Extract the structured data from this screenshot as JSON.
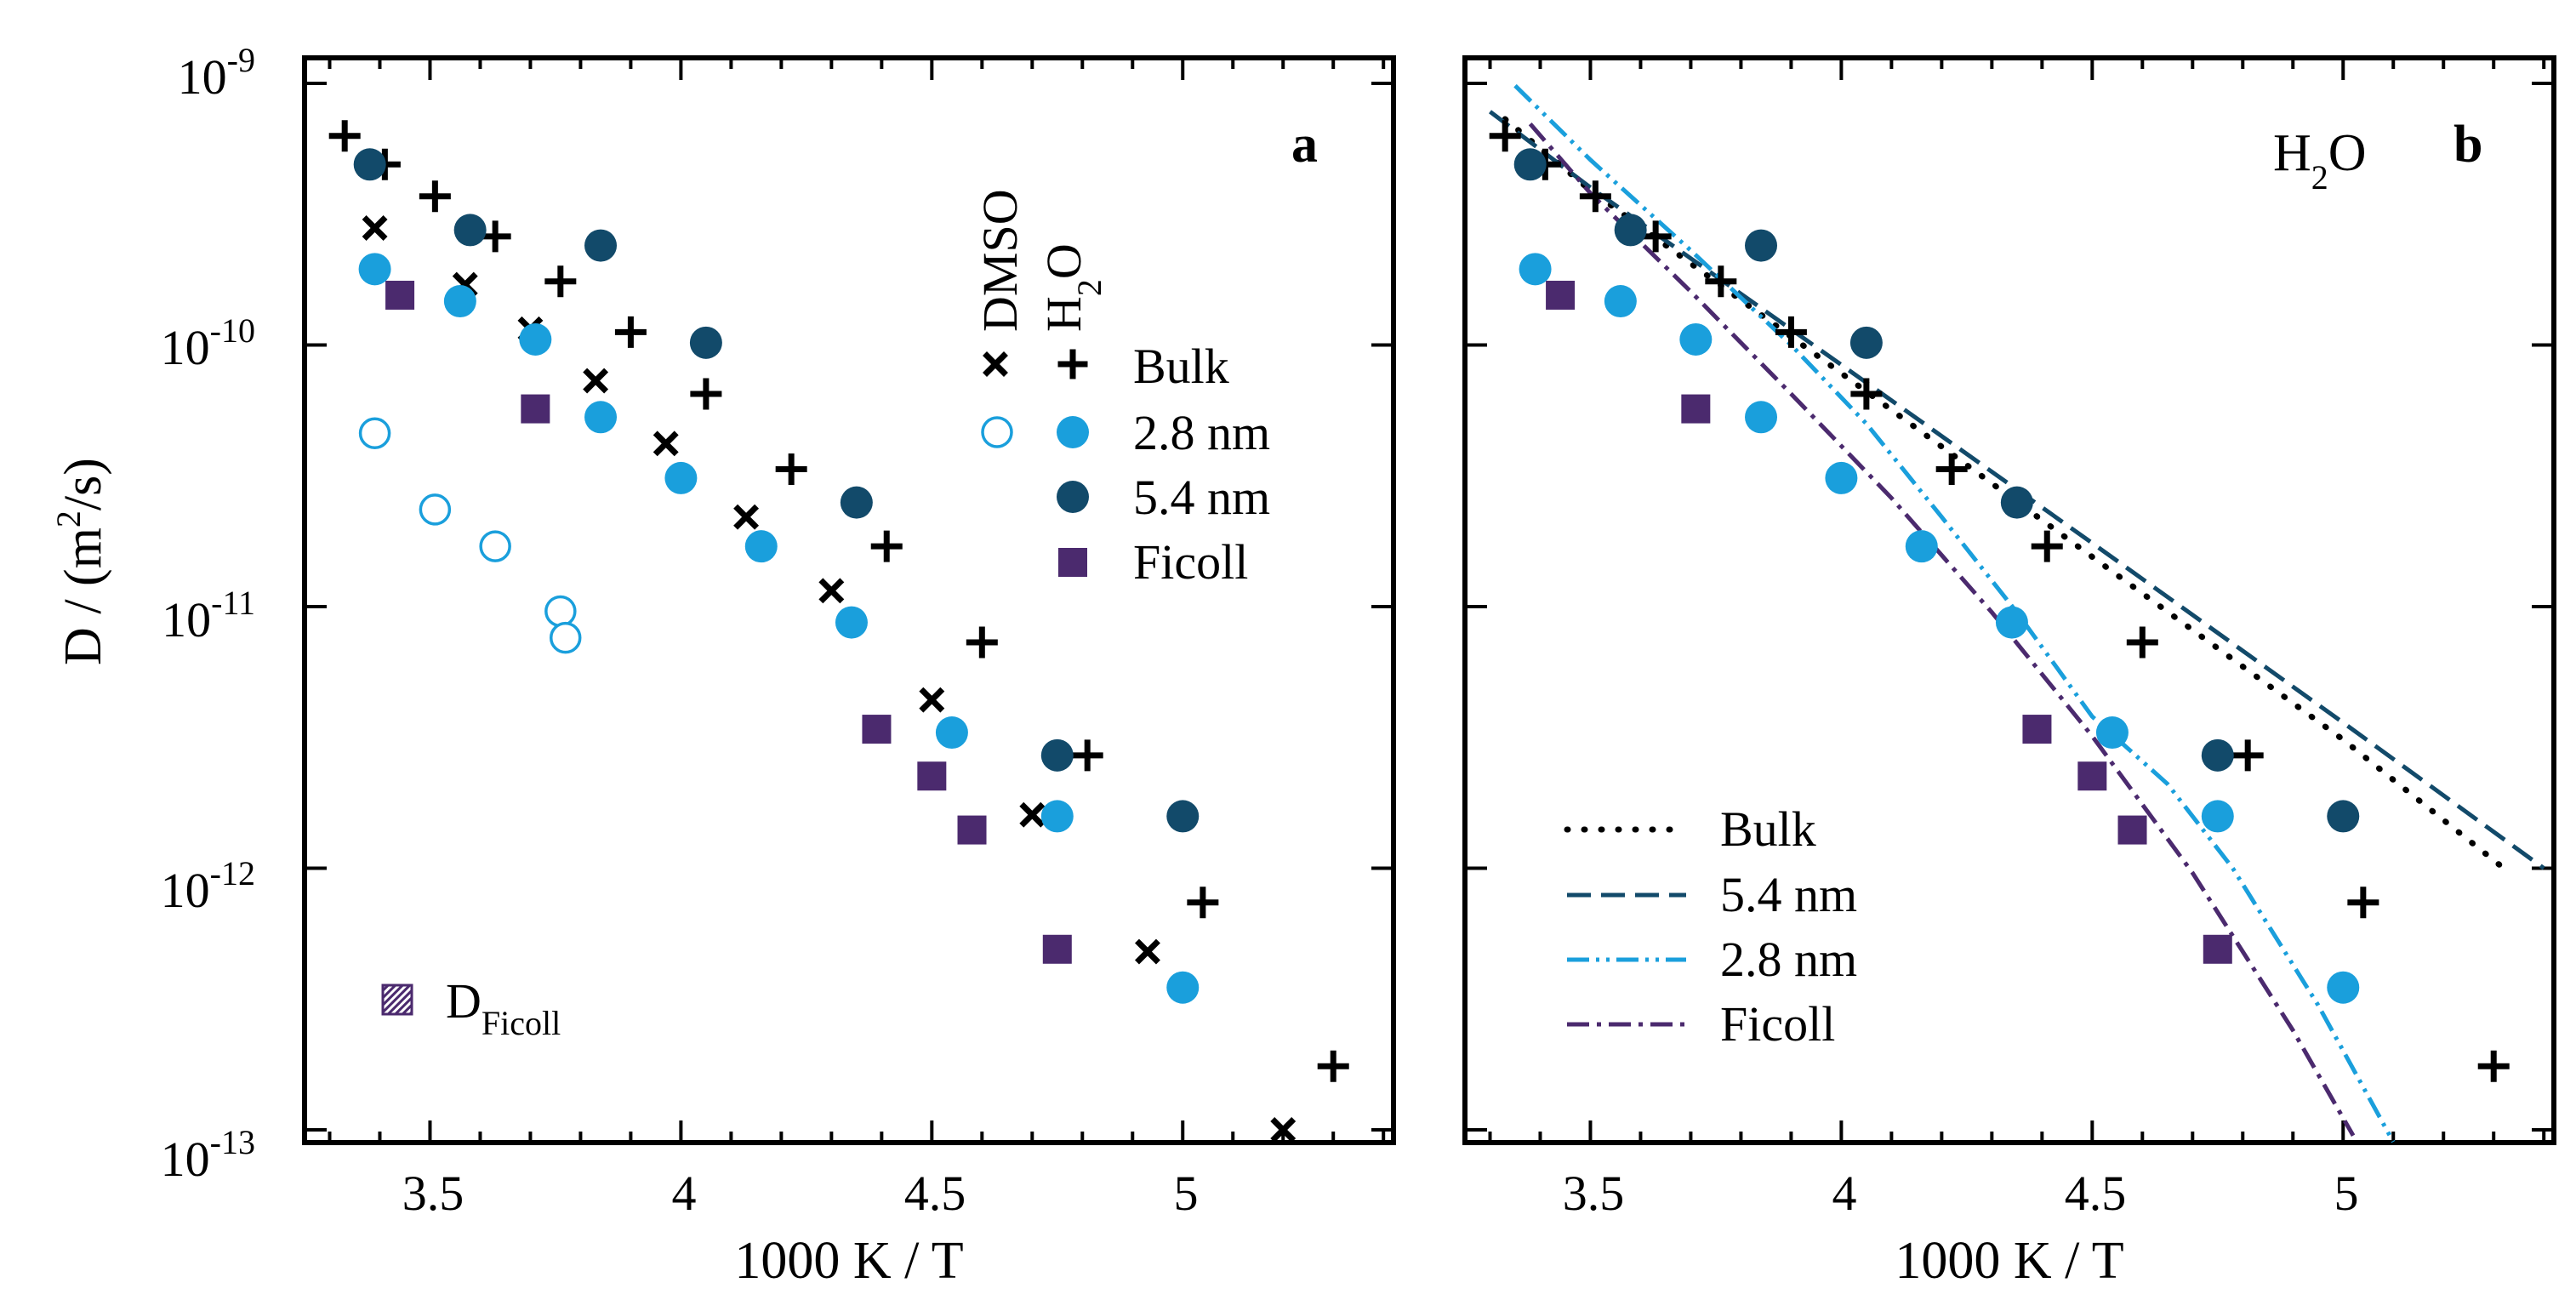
{
  "figure": {
    "y_axis_label": "D / (m",
    "y_axis_label_sup": "2",
    "y_axis_label_end": "/s)"
  },
  "chart_data": [
    {
      "type": "scatter",
      "panel": "a",
      "xlabel": "1000 K / T",
      "ylabel": "D / (m^2/s)",
      "yscale": "log",
      "xlim": [
        3.25,
        5.42
      ],
      "ylim": [
        1e-13,
        1e-09
      ],
      "x_ticks": [
        3.5,
        4,
        4.5,
        5
      ],
      "x_tick_labels": [
        "3.5",
        "4",
        "4.5",
        "5"
      ],
      "y_tick_labels": [
        {
          "base": "10",
          "exp": "-9"
        },
        {
          "base": "10",
          "exp": "-10"
        },
        {
          "base": "10",
          "exp": "-11"
        },
        {
          "base": "10",
          "exp": "-12"
        },
        {
          "base": "10",
          "exp": "-13"
        }
      ],
      "legend": {
        "col_headers": [
          "DMSO",
          "H",
          "2",
          "O"
        ],
        "rows": [
          "Bulk",
          "2.8 nm",
          "5.4 nm",
          "Ficoll"
        ]
      },
      "annotation": {
        "text": "D",
        "subscript": "Ficoll"
      },
      "series": [
        {
          "name": "DMSO Bulk",
          "marker": "x",
          "color": "#000000",
          "x": [
            3.39,
            3.57,
            3.7,
            3.83,
            3.97,
            4.13,
            4.3,
            4.5,
            4.7,
            4.93,
            5.2
          ],
          "y": [
            2.8e-10,
            1.7e-10,
            1.15e-10,
            7.3e-11,
            4.2e-11,
            2.2e-11,
            1.15e-11,
            4.4e-12,
            1.6e-12,
            4.8e-13,
            1e-13
          ]
        },
        {
          "name": "DMSO 2.8 nm",
          "marker": "open-circle",
          "color": "#1a9fdc",
          "x": [
            3.39,
            3.51,
            3.63,
            3.76,
            3.77
          ],
          "y": [
            4.6e-11,
            2.35e-11,
            1.7e-11,
            9.6e-12,
            7.6e-12
          ]
        },
        {
          "name": "H2O Bulk",
          "marker": "+",
          "color": "#000000",
          "x": [
            3.33,
            3.41,
            3.51,
            3.63,
            3.76,
            3.9,
            4.05,
            4.22,
            4.41,
            4.6,
            4.81,
            5.04,
            5.3
          ],
          "y": [
            6.3e-10,
            4.9e-10,
            3.7e-10,
            2.6e-10,
            1.75e-10,
            1.12e-10,
            6.5e-11,
            3.35e-11,
            1.7e-11,
            7.3e-12,
            2.7e-12,
            7.4e-13,
            1.75e-13
          ]
        },
        {
          "name": "H2O 2.8 nm",
          "marker": "filled-circle",
          "color": "#1a9fdc",
          "x": [
            3.39,
            3.56,
            3.71,
            3.84,
            4.0,
            4.16,
            4.34,
            4.54,
            4.75,
            5.0
          ],
          "y": [
            1.95e-10,
            1.47e-10,
            1.05e-10,
            5.3e-11,
            3.1e-11,
            1.7e-11,
            8.7e-12,
            3.3e-12,
            1.58e-12,
            3.5e-13
          ]
        },
        {
          "name": "H2O 5.4 nm",
          "marker": "filled-circle",
          "color": "#124a6a",
          "x": [
            3.38,
            3.58,
            3.84,
            4.05,
            4.35,
            4.75,
            5.0
          ],
          "y": [
            4.9e-10,
            2.75e-10,
            2.4e-10,
            1.02e-10,
            2.5e-11,
            2.7e-12,
            1.58e-12
          ]
        },
        {
          "name": "H2O Ficoll",
          "marker": "square",
          "color": "#4b2a6e",
          "x": [
            3.44,
            3.71,
            4.39,
            4.5,
            4.58,
            4.75
          ],
          "y": [
            1.55e-10,
            5.7e-11,
            3.4e-12,
            2.25e-12,
            1.4e-12,
            4.9e-13
          ]
        }
      ]
    },
    {
      "type": "scatter",
      "panel": "b",
      "title": "H2O",
      "title_parts": [
        "H",
        "2",
        "O"
      ],
      "xlabel": "1000 K / T",
      "yscale": "log",
      "xlim": [
        3.25,
        5.42
      ],
      "ylim": [
        1e-13,
        1e-09
      ],
      "x_ticks": [
        3.5,
        4,
        4.5,
        5
      ],
      "x_tick_labels": [
        "3.5",
        "4",
        "4.5",
        "5"
      ],
      "legend": {
        "rows": [
          "Bulk",
          "5.4 nm",
          "2.8 nm",
          "Ficoll"
        ]
      },
      "series": [
        {
          "name": "H2O Bulk",
          "marker": "+",
          "color": "#000000",
          "x": [
            3.33,
            3.41,
            3.51,
            3.63,
            3.76,
            3.9,
            4.05,
            4.22,
            4.41,
            4.6,
            4.81,
            5.04,
            5.3
          ],
          "y": [
            6.3e-10,
            4.9e-10,
            3.7e-10,
            2.6e-10,
            1.75e-10,
            1.12e-10,
            6.5e-11,
            3.35e-11,
            1.7e-11,
            7.3e-12,
            2.7e-12,
            7.4e-13,
            1.75e-13
          ]
        },
        {
          "name": "H2O 2.8 nm",
          "marker": "filled-circle",
          "color": "#1a9fdc",
          "x": [
            3.39,
            3.56,
            3.71,
            3.84,
            4.0,
            4.16,
            4.34,
            4.54,
            4.75,
            5.0
          ],
          "y": [
            1.95e-10,
            1.47e-10,
            1.05e-10,
            5.3e-11,
            3.1e-11,
            1.7e-11,
            8.7e-12,
            3.3e-12,
            1.58e-12,
            3.5e-13
          ]
        },
        {
          "name": "H2O 5.4 nm",
          "marker": "filled-circle",
          "color": "#124a6a",
          "x": [
            3.38,
            3.58,
            3.84,
            4.05,
            4.35,
            4.75,
            5.0
          ],
          "y": [
            4.9e-10,
            2.75e-10,
            2.4e-10,
            1.02e-10,
            2.5e-11,
            2.7e-12,
            1.58e-12
          ]
        },
        {
          "name": "H2O Ficoll",
          "marker": "square",
          "color": "#4b2a6e",
          "x": [
            3.44,
            3.71,
            4.39,
            4.5,
            4.58,
            4.75
          ],
          "y": [
            1.55e-10,
            5.7e-11,
            3.4e-12,
            2.25e-12,
            1.4e-12,
            4.9e-13
          ]
        }
      ],
      "lines": [
        {
          "name": "Bulk",
          "style": "dotted",
          "color": "#000000",
          "x": [
            3.33,
            3.5,
            4.0,
            4.5,
            5.0,
            5.32
          ],
          "y": [
            7.3e-10,
            3.9e-10,
            7.8e-11,
            1.55e-11,
            3.1e-12,
            1e-12
          ]
        },
        {
          "name": "5.4 nm",
          "style": "dashed",
          "color": "#124a6a",
          "x": [
            3.3,
            3.5,
            4.0,
            4.5,
            5.0,
            5.4
          ],
          "y": [
            7.8e-10,
            4e-10,
            8.4e-11,
            1.75e-11,
            3.6e-12,
            1e-12
          ]
        },
        {
          "name": "2.8 nm",
          "style": "dash-dot-dot",
          "color": "#1a9fdc",
          "x": [
            3.35,
            3.5,
            3.7,
            3.9,
            4.05,
            4.2,
            4.35,
            4.5,
            4.65,
            4.78,
            4.95,
            5.1
          ],
          "y": [
            9.8e-10,
            5.1e-10,
            2.3e-10,
            1e-10,
            5e-11,
            2.2e-11,
            9.5e-12,
            3.8e-12,
            2.1e-12,
            1e-12,
            3e-13,
            9e-14
          ]
        },
        {
          "name": "Ficoll",
          "style": "dash-dot",
          "color": "#4b2a6e",
          "x": [
            3.38,
            3.5,
            3.7,
            3.9,
            4.1,
            4.3,
            4.5,
            4.7,
            4.9,
            5.02
          ],
          "y": [
            7e-10,
            3.8e-10,
            1.6e-10,
            6.5e-11,
            2.6e-11,
            9.5e-12,
            3.2e-12,
            9.6e-13,
            2.4e-13,
            9.5e-14
          ]
        }
      ]
    }
  ]
}
